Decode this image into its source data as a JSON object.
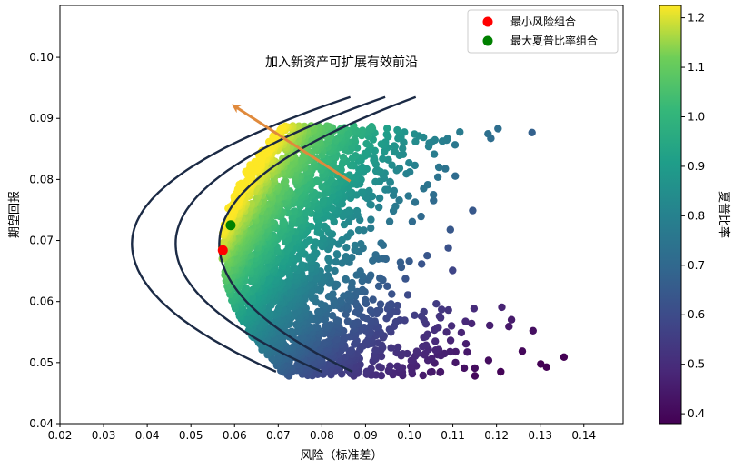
{
  "chart_data": {
    "type": "scatter",
    "title": "",
    "xlabel": "风险（标准差）",
    "ylabel": "期望回报",
    "xlim": [
      0.02,
      0.149
    ],
    "ylim": [
      0.04,
      0.1085
    ],
    "x_ticks": [
      "0.02",
      "0.03",
      "0.04",
      "0.05",
      "0.06",
      "0.07",
      "0.08",
      "0.09",
      "0.10",
      "0.11",
      "0.12",
      "0.13",
      "0.14"
    ],
    "x_tick_values": [
      0.02,
      0.03,
      0.04,
      0.05,
      0.06,
      0.07,
      0.08,
      0.09,
      0.1,
      0.11,
      0.12,
      0.13,
      0.14
    ],
    "y_ticks": [
      "0.04",
      "0.05",
      "0.06",
      "0.07",
      "0.08",
      "0.09",
      "0.10"
    ],
    "y_tick_values": [
      0.04,
      0.05,
      0.06,
      0.07,
      0.08,
      0.09,
      0.1
    ],
    "grid": false,
    "colormap": "viridis",
    "colorbar": {
      "label": "夏普比率",
      "range": [
        0.38,
        1.225
      ],
      "ticks": [
        "0.4",
        "0.5",
        "0.6",
        "0.7",
        "0.8",
        "0.9",
        "1.0",
        "1.1",
        "1.2"
      ],
      "tick_values": [
        0.4,
        0.5,
        0.6,
        0.7,
        0.8,
        0.9,
        1.0,
        1.1,
        1.2
      ]
    },
    "legend": {
      "placement": "top-right",
      "entries": [
        {
          "label": "最小风险组合",
          "color": "#ff0000"
        },
        {
          "label": "最大夏普比率组合",
          "color": "#008000"
        }
      ]
    },
    "special_points": {
      "min_risk": {
        "x": 0.0573,
        "y": 0.0684,
        "color": "#ff0000"
      },
      "max_sharpe": {
        "x": 0.0591,
        "y": 0.0725,
        "color": "#008000"
      }
    },
    "frontier_curves": {
      "color": "#1b2a45",
      "y_min": 0.0485,
      "y_mid": 0.0695,
      "curves": [
        {
          "x_left": 0.0365,
          "x_top": 0.0865,
          "x_bottom": 0.0695
        },
        {
          "x_left": 0.0465,
          "x_top": 0.0945,
          "x_bottom": 0.08
        },
        {
          "x_left": 0.0565,
          "x_top": 0.1015,
          "x_bottom": 0.087
        }
      ]
    },
    "arrow": {
      "from": [
        0.0865,
        0.0797
      ],
      "to": [
        0.06,
        0.092
      ],
      "color": "#e08a3c"
    },
    "annotation": {
      "text": "加入新资产可扩展有效前沿",
      "x": 0.0845,
      "y": 0.0985
    },
    "scatter_points_count": 2600,
    "scatter_region": {
      "x_min": 0.057,
      "y_min": 0.048,
      "y_max": 0.0888,
      "x_max": 0.139
    }
  }
}
